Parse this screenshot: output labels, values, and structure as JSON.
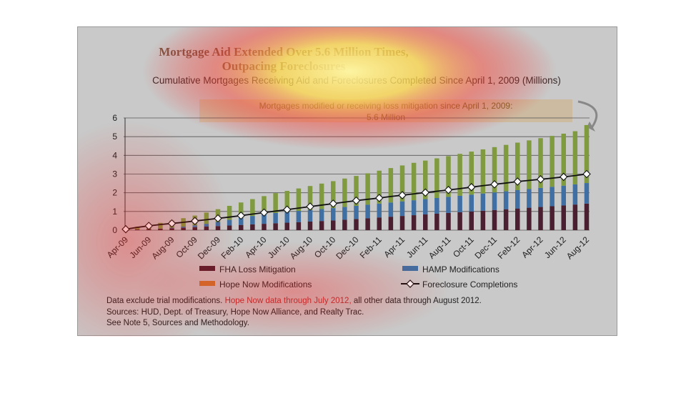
{
  "colors": {
    "fha": "#4a2030",
    "hamp": "#3f6fa3",
    "hope": "#7f9a3f",
    "foreclosure_line": "#111111",
    "foreclosure_marker": "#ffffff"
  },
  "chart_data": {
    "type": "bar",
    "title_line1": "Mortgage Aid Extended Over 5.6 Million Times,",
    "title_line2": "Outpacing Foreclosures",
    "subtitle": "Cumulative Mortgages Receiving Aid and Foreclosures Completed Since April 1, 2009 (Millions)",
    "callout_line1": "Mortgages modified or receiving loss mitigation since April 1, 2009:",
    "callout_line2": "5.6 Million",
    "ylim": [
      0,
      6
    ],
    "yticks": [
      "0",
      "1",
      "2",
      "3",
      "4",
      "5",
      "6"
    ],
    "grid": true,
    "legend_position": "bottom",
    "x_tick_labels": [
      "Apr-09",
      "Jun-09",
      "Aug-09",
      "Oct-09",
      "Dec-09",
      "Feb-10",
      "Apr-10",
      "Jun-10",
      "Aug-10",
      "Oct-10",
      "Dec-10",
      "Feb-11",
      "Apr-11",
      "Jun-11",
      "Aug-11",
      "Oct-11",
      "Dec-11",
      "Feb-12",
      "Apr-12",
      "Jun-12",
      "Aug-12"
    ],
    "categories": [
      "Apr-09",
      "May-09",
      "Jun-09",
      "Jul-09",
      "Aug-09",
      "Sep-09",
      "Oct-09",
      "Nov-09",
      "Dec-09",
      "Jan-10",
      "Feb-10",
      "Mar-10",
      "Apr-10",
      "May-10",
      "Jun-10",
      "Jul-10",
      "Aug-10",
      "Sep-10",
      "Oct-10",
      "Nov-10",
      "Dec-10",
      "Jan-11",
      "Feb-11",
      "Mar-11",
      "Apr-11",
      "May-11",
      "Jun-11",
      "Jul-11",
      "Aug-11",
      "Sep-11",
      "Oct-11",
      "Nov-11",
      "Dec-11",
      "Jan-12",
      "Feb-12",
      "Mar-12",
      "Apr-12",
      "May-12",
      "Jun-12",
      "Jul-12",
      "Aug-12"
    ],
    "series": [
      {
        "name": "FHA Loss Mitigation",
        "values": [
          0.02,
          0.04,
          0.06,
          0.08,
          0.1,
          0.13,
          0.16,
          0.19,
          0.22,
          0.25,
          0.28,
          0.31,
          0.34,
          0.37,
          0.4,
          0.43,
          0.46,
          0.49,
          0.52,
          0.56,
          0.6,
          0.64,
          0.68,
          0.72,
          0.76,
          0.8,
          0.84,
          0.88,
          0.92,
          0.96,
          1.0,
          1.04,
          1.08,
          1.12,
          1.16,
          1.2,
          1.24,
          1.28,
          1.32,
          1.37,
          1.42
        ]
      },
      {
        "name": "HAMP Modifications",
        "values": [
          0.0,
          0.0,
          0.0,
          0.01,
          0.03,
          0.06,
          0.1,
          0.15,
          0.22,
          0.3,
          0.38,
          0.45,
          0.5,
          0.55,
          0.58,
          0.6,
          0.62,
          0.64,
          0.66,
          0.68,
          0.7,
          0.72,
          0.74,
          0.76,
          0.78,
          0.8,
          0.82,
          0.84,
          0.86,
          0.88,
          0.9,
          0.92,
          0.94,
          0.96,
          0.98,
          1.0,
          1.02,
          1.04,
          1.06,
          1.08,
          1.1
        ]
      },
      {
        "name": "Hope Now Modifications",
        "values": [
          0.08,
          0.14,
          0.22,
          0.3,
          0.38,
          0.45,
          0.52,
          0.6,
          0.68,
          0.75,
          0.82,
          0.9,
          0.98,
          1.06,
          1.12,
          1.2,
          1.28,
          1.36,
          1.44,
          1.52,
          1.6,
          1.68,
          1.76,
          1.84,
          1.92,
          2.0,
          2.06,
          2.12,
          2.18,
          2.24,
          2.3,
          2.36,
          2.42,
          2.48,
          2.54,
          2.6,
          2.66,
          2.72,
          2.78,
          2.84,
          3.1
        ]
      },
      {
        "name": "Foreclosure Completions",
        "values": [
          0.05,
          0.15,
          0.23,
          0.3,
          0.36,
          0.42,
          0.49,
          0.56,
          0.63,
          0.7,
          0.78,
          0.86,
          0.94,
          1.02,
          1.1,
          1.18,
          1.26,
          1.34,
          1.42,
          1.5,
          1.58,
          1.65,
          1.72,
          1.8,
          1.87,
          1.94,
          2.01,
          2.08,
          2.15,
          2.22,
          2.3,
          2.38,
          2.45,
          2.52,
          2.6,
          2.66,
          2.72,
          2.78,
          2.85,
          2.92,
          3.0
        ]
      }
    ]
  },
  "notes": {
    "line1_a": "Data exclude trial modifications. ",
    "line1_b": "Hope Now data through July 2012,",
    "line1_c": " all other data through August 2012.",
    "line2": "Sources:  HUD, Dept. of Treasury, Hope Now Alliance, and Realty Trac.",
    "line3": "See Note 5, Sources and Methodology."
  }
}
